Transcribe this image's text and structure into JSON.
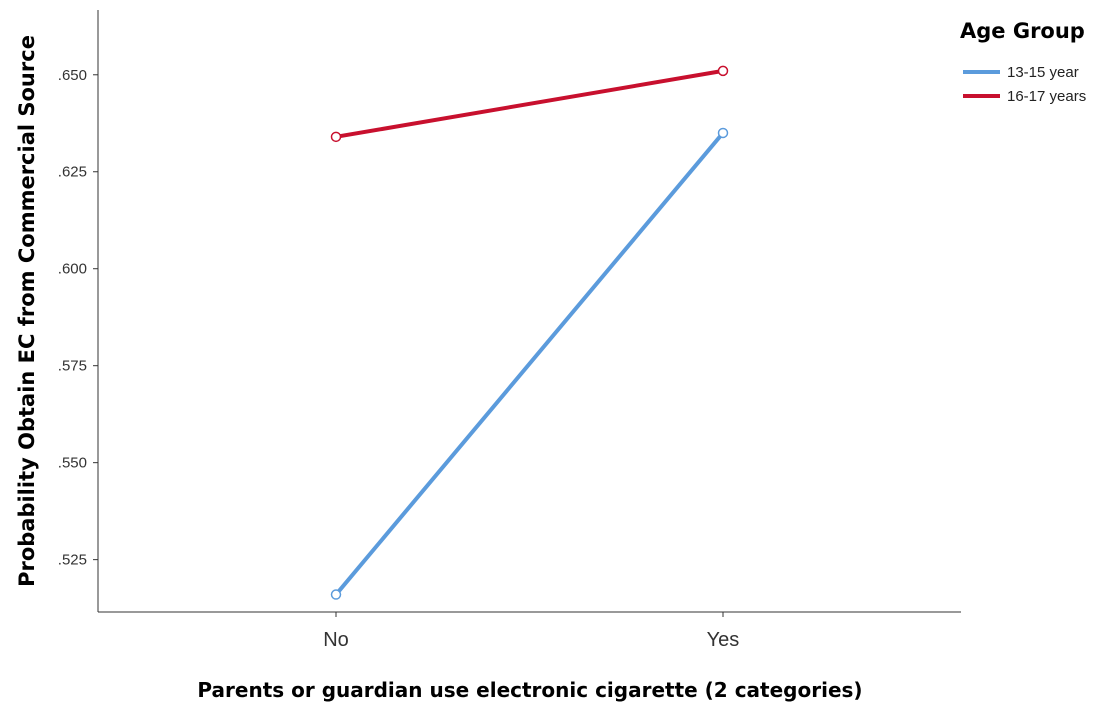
{
  "chart_data": {
    "type": "line",
    "categories": [
      "No",
      "Yes"
    ],
    "series": [
      {
        "name": "13-15 year",
        "values": [
          0.516,
          0.635
        ],
        "color": "#5b9bdc"
      },
      {
        "name": "16-17 years",
        "values": [
          0.634,
          0.651
        ],
        "color": "#c8102e"
      }
    ],
    "xlabel": "Parents or guardian use electronic cigarette (2 categories)",
    "ylabel": "Probability Obtain EC from Commercial Source",
    "ylim": [
      0.5115,
      0.6667
    ],
    "yticks": [
      0.525,
      0.55,
      0.575,
      0.6,
      0.625,
      0.65
    ],
    "ytick_labels": [
      ".525",
      ".550",
      ".575",
      ".600",
      ".625",
      ".650"
    ],
    "legend": {
      "title": "Age Group",
      "position": "top-right"
    },
    "grid": false,
    "marker": "circle-open"
  }
}
